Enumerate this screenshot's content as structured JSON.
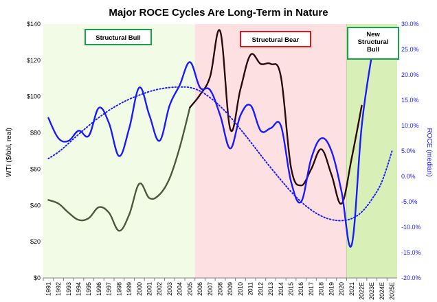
{
  "chart_data": {
    "type": "line",
    "title": "Major ROCE Cycles Are Long-Term in Nature",
    "x_categories": [
      "1991",
      "1992",
      "1993",
      "1994",
      "1995",
      "1996",
      "1997",
      "1998",
      "1999",
      "2000",
      "2001",
      "2002",
      "2003",
      "2004",
      "2005",
      "2006",
      "2007",
      "2008",
      "2009",
      "2010",
      "2011",
      "2012",
      "2013",
      "2014",
      "2015",
      "2016",
      "2017",
      "2018",
      "2019",
      "2020",
      "2021",
      "2022E",
      "2023E",
      "2024E",
      "2025E"
    ],
    "ylabel_left": "WTI ($/bbl, real)",
    "ylabel_right": "ROCE (median)",
    "ylim_left": [
      0,
      140
    ],
    "ylim_right": [
      -20,
      30
    ],
    "left_ticks": [
      "$0",
      "$20",
      "$40",
      "$60",
      "$80",
      "$100",
      "$120",
      "$140"
    ],
    "right_ticks": [
      "-20.0%",
      "-15.0%",
      "-10.0%",
      "-5.0%",
      "0.0%",
      "5.0%",
      "10.0%",
      "15.0%",
      "20.0%",
      "25.0%",
      "30.0%"
    ],
    "series": [
      {
        "axis": "left",
        "color": "#4a5a3c",
        "values": [
          43,
          41,
          36,
          32,
          33,
          39,
          36,
          26,
          35,
          52,
          44,
          46,
          55,
          72,
          94,
          null,
          null,
          null,
          null,
          null,
          null,
          null,
          null,
          null,
          null,
          null,
          null,
          null,
          null,
          null,
          null,
          null,
          null,
          null,
          null
        ]
      },
      {
        "axis": "left",
        "color": "#2a0a0a",
        "values": [
          null,
          null,
          null,
          null,
          null,
          null,
          null,
          null,
          null,
          null,
          null,
          null,
          null,
          null,
          94,
          101,
          111,
          136,
          82,
          104,
          123,
          118,
          118,
          111,
          61,
          51,
          60,
          71,
          57,
          41,
          66,
          95,
          null,
          null,
          null
        ]
      },
      {
        "axis": "right",
        "color": "#1a1aff",
        "values": [
          11.5,
          7.5,
          7.0,
          9.0,
          8.0,
          13.5,
          10.5,
          4.0,
          9.5,
          17.5,
          12.0,
          7.0,
          14.0,
          18.0,
          22.5,
          17.5,
          17.0,
          12.0,
          5.5,
          12.0,
          14.0,
          9.0,
          9.5,
          10.0,
          -1.0,
          -5.0,
          3.5,
          7.5,
          5.0,
          -3.0,
          -13.5,
          10.0,
          24.0,
          null,
          null
        ]
      },
      {
        "axis": "right",
        "color": "#1a1aff",
        "style": "dotted",
        "values": [
          3.5,
          4.8,
          6.5,
          8.3,
          10.0,
          11.6,
          13.0,
          14.2,
          15.2,
          16.0,
          16.7,
          17.2,
          17.5,
          17.6,
          17.5,
          16.8,
          15.5,
          13.8,
          11.7,
          9.3,
          6.8,
          4.2,
          1.7,
          -0.7,
          -3.0,
          -5.0,
          -6.6,
          -7.8,
          -8.5,
          -8.7,
          -8.3,
          -7.0,
          -4.5,
          -1.0,
          5.0
        ]
      }
    ],
    "regions": [
      {
        "label": "Structural Bull",
        "from": "1991",
        "to": "2006",
        "color": "#f2fbe6",
        "border": "#18a04a"
      },
      {
        "label": "Structural Bear",
        "from": "2006",
        "to": "2021",
        "color": "#fde0e2",
        "border": "#e8141e"
      },
      {
        "label": "New Structural Bull",
        "from": "2021",
        "to": "2025E",
        "color": "#d8f0b8",
        "border": "#18a04a"
      }
    ],
    "grid": false,
    "legend": "none"
  }
}
